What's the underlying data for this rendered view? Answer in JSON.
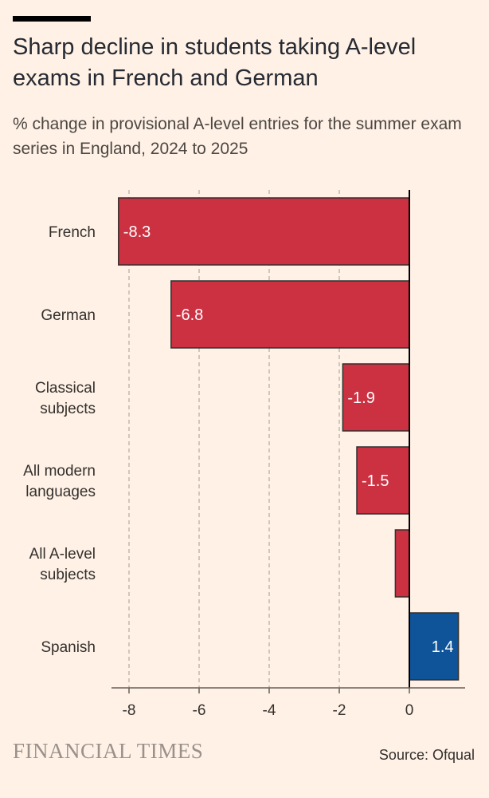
{
  "header": {
    "title": "Sharp decline in students taking A-level exams in French and German",
    "subtitle": "% change in provisional A-level entries for the summer exam series in England, 2024 to 2025"
  },
  "footer": {
    "brand": "FINANCIAL TIMES",
    "source": "Source: Ofqual"
  },
  "colors": {
    "negative": "#CC3142",
    "positive": "#0F5499",
    "background": "#FFF1E5"
  },
  "chart_data": {
    "type": "bar",
    "orientation": "horizontal",
    "title": "Sharp decline in students taking A-level exams in French and German",
    "subtitle": "% change in provisional A-level entries for the summer exam series in England, 2024 to 2025",
    "xlabel": "",
    "ylabel": "",
    "xlim": [
      -8.5,
      1.5
    ],
    "xticks": [
      -8,
      -6,
      -4,
      -2,
      0
    ],
    "grid": true,
    "categories": [
      [
        "French"
      ],
      [
        "German"
      ],
      [
        "Classical",
        "subjects"
      ],
      [
        "All modern",
        "languages"
      ],
      [
        "All A-level",
        "subjects"
      ],
      [
        "Spanish"
      ]
    ],
    "values": [
      -8.3,
      -6.8,
      -1.9,
      -1.5,
      -0.4,
      1.4
    ],
    "value_labels": [
      "-8.3",
      "-6.8",
      "-1.9",
      "-1.5",
      "",
      "1.4"
    ]
  }
}
